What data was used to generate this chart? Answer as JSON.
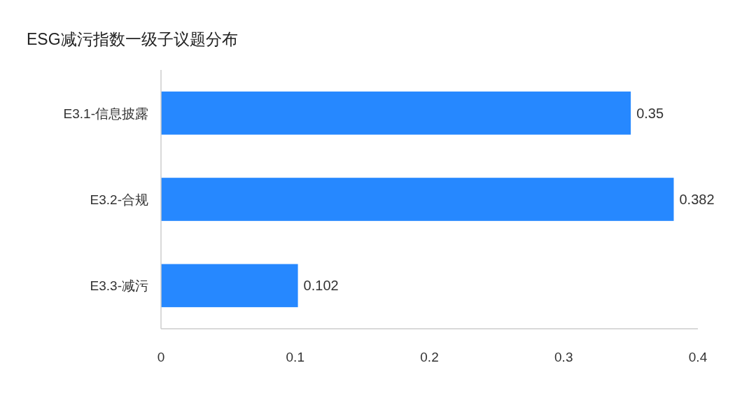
{
  "chart_data": {
    "type": "bar",
    "orientation": "horizontal",
    "title": "ESG减污指数一级子议题分布",
    "categories": [
      "E3.1-信息披露",
      "E3.2-合规",
      "E3.3-减污"
    ],
    "values": [
      0.35,
      0.382,
      0.102
    ],
    "color": "#2688ff",
    "xlim": [
      0,
      0.4
    ],
    "xticks": [
      0,
      0.1,
      0.2,
      0.3,
      0.4
    ],
    "data_labels": true
  }
}
